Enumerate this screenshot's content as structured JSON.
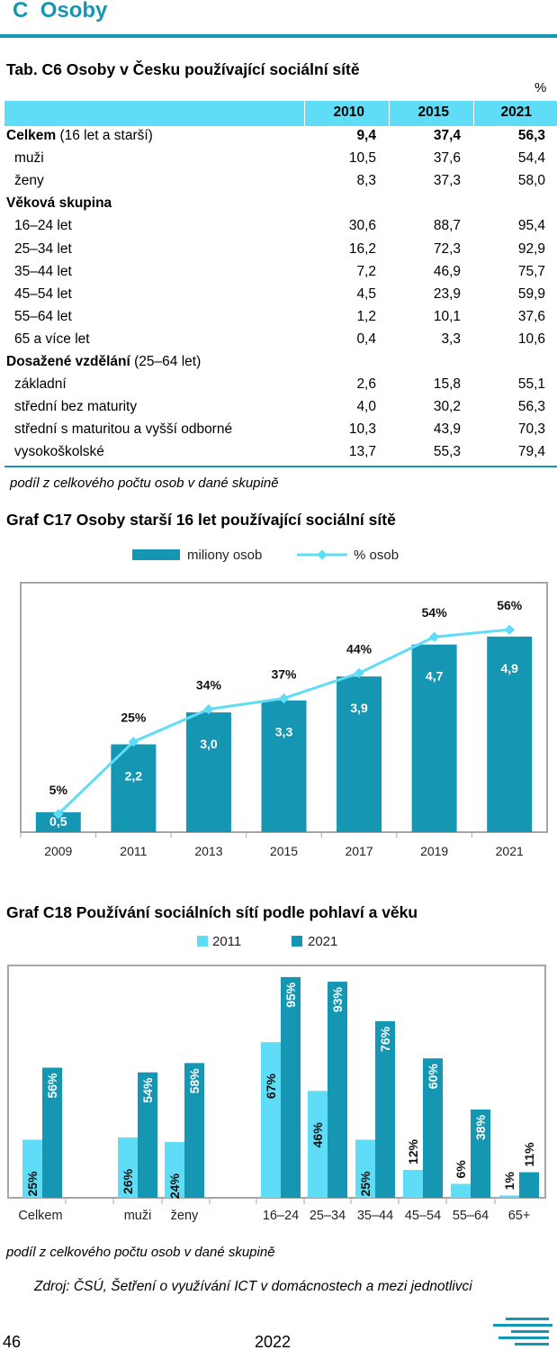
{
  "section": {
    "letter": "C",
    "title": "Osoby"
  },
  "table": {
    "title": "Tab. C6 Osoby v Česku používající sociální sítě",
    "unit": "%",
    "years": [
      "2010",
      "2015",
      "2021"
    ],
    "rows": [
      {
        "label": "Celkem",
        "suffix": " (16 let a starší)",
        "values": [
          "9,4",
          "37,4",
          "56,3"
        ],
        "bold": true
      },
      {
        "label": "muži",
        "values": [
          "10,5",
          "37,6",
          "54,4"
        ]
      },
      {
        "label": "ženy",
        "values": [
          "8,3",
          "37,3",
          "58,0"
        ]
      },
      {
        "label": "Věková skupina",
        "group": true,
        "values": []
      },
      {
        "label": "16–24 let",
        "values": [
          "30,6",
          "88,7",
          "95,4"
        ]
      },
      {
        "label": "25–34 let",
        "values": [
          "16,2",
          "72,3",
          "92,9"
        ]
      },
      {
        "label": "35–44 let",
        "values": [
          "7,2",
          "46,9",
          "75,7"
        ]
      },
      {
        "label": "45–54 let",
        "values": [
          "4,5",
          "23,9",
          "59,9"
        ]
      },
      {
        "label": "55–64 let",
        "values": [
          "1,2",
          "10,1",
          "37,6"
        ]
      },
      {
        "label": "65 a více let",
        "values": [
          "0,4",
          "3,3",
          "10,6"
        ]
      },
      {
        "label": "Dosažené vzdělání",
        "suffix": " (25–64 let)",
        "group": true,
        "values": []
      },
      {
        "label": "základní",
        "values": [
          "2,6",
          "15,8",
          "55,1"
        ]
      },
      {
        "label": "střední bez maturity",
        "values": [
          "4,0",
          "30,2",
          "56,3"
        ]
      },
      {
        "label": "střední s maturitou a vyšší odborné",
        "values": [
          "10,3",
          "43,9",
          "70,3"
        ]
      },
      {
        "label": "vysokoškolské",
        "values": [
          "13,7",
          "55,3",
          "79,4"
        ]
      }
    ],
    "note": "podíl z celkového počtu osob v dané skupině"
  },
  "chart_data": [
    {
      "type": "bar",
      "title": "Graf C17 Osoby starší 16 let používající sociální sítě",
      "categories": [
        "2009",
        "2011",
        "2013",
        "2015",
        "2017",
        "2019",
        "2021"
      ],
      "series": [
        {
          "name": "miliony osob",
          "type": "bar",
          "values": [
            0.5,
            2.2,
            3.0,
            3.3,
            3.9,
            4.7,
            4.9
          ],
          "labels": [
            "0,5",
            "2,2",
            "3,0",
            "3,3",
            "3,9",
            "4,7",
            "4,9"
          ],
          "color": "#1596b3"
        },
        {
          "name": "% osob",
          "type": "line",
          "values": [
            5,
            25,
            34,
            37,
            44,
            54,
            56
          ],
          "labels": [
            "5%",
            "25%",
            "34%",
            "37%",
            "44%",
            "54%",
            "56%"
          ],
          "color": "#5fdcf6"
        }
      ],
      "legend": "top",
      "grid": false
    },
    {
      "type": "bar",
      "title": "Graf C18 Používání sociálních sítí podle pohlaví a věku",
      "categories": [
        "Celkem",
        "muži",
        "ženy",
        "16–24",
        "25–34",
        "35–44",
        "45–54",
        "55–64",
        "65+"
      ],
      "series": [
        {
          "name": "2011",
          "values": [
            25,
            26,
            24,
            67,
            46,
            25,
            12,
            6,
            1
          ],
          "labels": [
            "25%",
            "26%",
            "24%",
            "67%",
            "46%",
            "25%",
            "12%",
            "6%",
            "1%"
          ],
          "color": "#5fdcf6"
        },
        {
          "name": "2021",
          "values": [
            56,
            54,
            58,
            95,
            93,
            76,
            60,
            38,
            11
          ],
          "labels": [
            "56%",
            "54%",
            "58%",
            "95%",
            "93%",
            "76%",
            "60%",
            "38%",
            "11%"
          ],
          "color": "#1596b3"
        }
      ],
      "legend": "top",
      "note": "podíl z celkového počtu osob v dané skupině"
    }
  ],
  "source": "Zdroj: ČSÚ, Šetření o využívání ICT v domácnostech a mezi jednotlivci",
  "footer": {
    "page": "46",
    "year": "2022"
  },
  "logo_icon": "csu-stripes-logo"
}
